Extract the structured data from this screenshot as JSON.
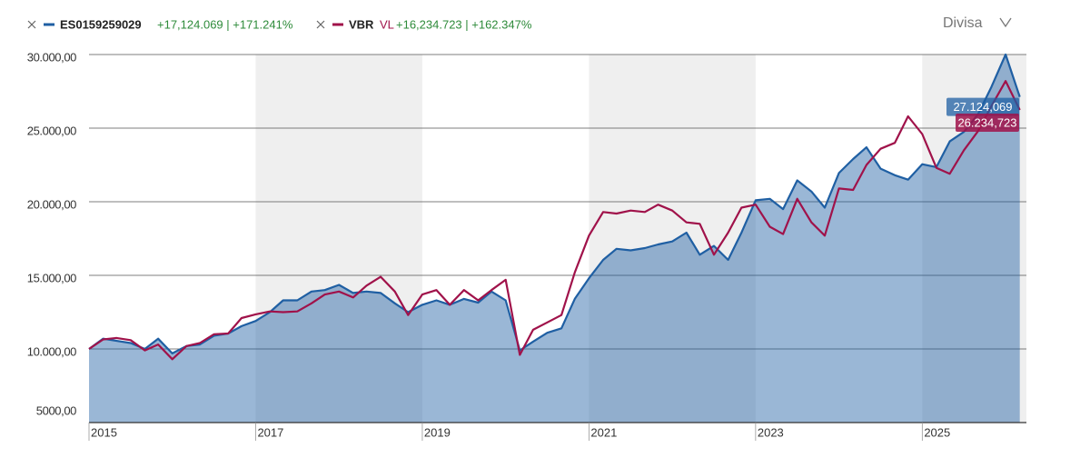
{
  "chart_data": {
    "type": "line",
    "currency_label": "Divisa",
    "x": [
      2015,
      2015.17,
      2015.33,
      2015.5,
      2015.67,
      2015.83,
      2016,
      2016.17,
      2016.33,
      2016.5,
      2016.67,
      2016.83,
      2017,
      2017.17,
      2017.33,
      2017.5,
      2017.67,
      2017.83,
      2018,
      2018.17,
      2018.33,
      2018.5,
      2018.67,
      2018.83,
      2019,
      2019.17,
      2019.33,
      2019.5,
      2019.67,
      2019.83,
      2020,
      2020.17,
      2020.33,
      2020.5,
      2020.67,
      2020.83,
      2021,
      2021.17,
      2021.33,
      2021.5,
      2021.67,
      2021.83,
      2022,
      2022.17,
      2022.33,
      2022.5,
      2022.67,
      2022.83,
      2023,
      2023.17,
      2023.33,
      2023.5,
      2023.67,
      2023.83,
      2024,
      2024.17,
      2024.33,
      2024.5,
      2024.67,
      2024.83,
      2025,
      2025.17,
      2025.33,
      2025.5,
      2025.67,
      2025.83,
      2026,
      2026.17
    ],
    "series": [
      {
        "name": "ES0159259029",
        "change_label": "+17,124.069 | +171.241%",
        "color": "#1f5fa3",
        "area": true,
        "values": [
          10000,
          10700,
          10550,
          10400,
          10000,
          10700,
          9700,
          10200,
          10300,
          10900,
          11050,
          11550,
          11900,
          12500,
          13300,
          13300,
          13900,
          14000,
          14350,
          13800,
          13900,
          13800,
          13100,
          12500,
          13000,
          13300,
          13000,
          13400,
          13150,
          13900,
          13300,
          9900,
          10500,
          11100,
          11400,
          13400,
          14800,
          16050,
          16800,
          16700,
          16850,
          17100,
          17300,
          17900,
          16400,
          17000,
          16050,
          17900,
          20100,
          20200,
          19500,
          21450,
          20700,
          19600,
          21950,
          22900,
          23700,
          22250,
          21800,
          21500,
          22550,
          22350,
          24100,
          24750,
          25950,
          27800,
          30000,
          27124.069
        ],
        "end_label": "27.124,069"
      },
      {
        "name": "VBR",
        "tag": "VL",
        "change_label": "+16,234.723 | +162.347%",
        "color": "#a0124a",
        "area": false,
        "values": [
          10000,
          10650,
          10750,
          10600,
          9900,
          10300,
          9300,
          10200,
          10400,
          11000,
          11050,
          12100,
          12350,
          12550,
          12500,
          12550,
          13100,
          13700,
          13900,
          13500,
          14300,
          14900,
          13900,
          12300,
          13700,
          14000,
          13000,
          14000,
          13300,
          14000,
          14700,
          9600,
          11300,
          11800,
          12300,
          15200,
          17700,
          19300,
          19200,
          19400,
          19300,
          19800,
          19400,
          18600,
          18500,
          16400,
          17900,
          19600,
          19800,
          18300,
          17800,
          20200,
          18600,
          17700,
          20900,
          20800,
          22500,
          23600,
          24000,
          25800,
          24600,
          22300,
          21900,
          23500,
          24800,
          26500,
          28200,
          26234.723
        ],
        "end_label": "26.234,723"
      }
    ],
    "xlim": [
      2015,
      2026.25
    ],
    "xticks": [
      2015,
      2017,
      2019,
      2021,
      2023,
      2025
    ],
    "ylim": [
      5000,
      30000
    ],
    "yticks": [
      {
        "value": 5000,
        "label": "5000,00"
      },
      {
        "value": 10000,
        "label": "10.000,00"
      },
      {
        "value": 15000,
        "label": "15.000,00"
      },
      {
        "value": 20000,
        "label": "20.000,00"
      },
      {
        "value": 25000,
        "label": "25.000,00"
      },
      {
        "value": 30000,
        "label": "30.000,00"
      }
    ],
    "grid": true
  }
}
